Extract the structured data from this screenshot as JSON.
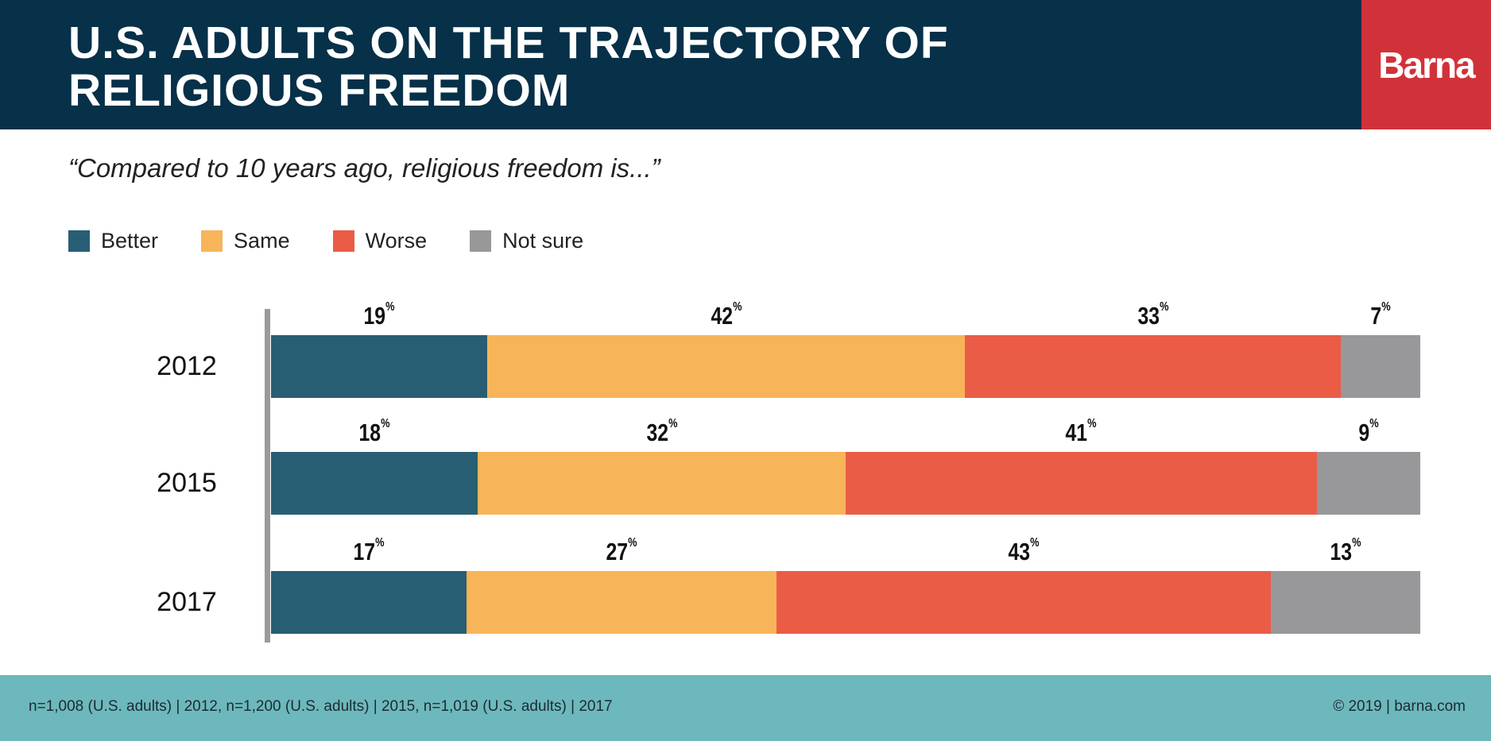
{
  "header": {
    "title": "U.S. ADULTS ON THE TRAJECTORY OF RELIGIOUS FREEDOM",
    "brand": "Barna"
  },
  "subtitle": "“Compared to 10 years ago, religious freedom is...”",
  "footer": {
    "source": "n=1,008 (U.S. adults) | 2012, n=1,200 (U.S. adults) | 2015, n=1,019 (U.S. adults) | 2017",
    "copyright": "© 2019 | barna.com"
  },
  "chart_data": {
    "type": "bar",
    "orientation": "horizontal-stacked",
    "title": "U.S. ADULTS ON THE TRAJECTORY OF RELIGIOUS FREEDOM",
    "categories": [
      "2012",
      "2015",
      "2017"
    ],
    "series": [
      {
        "name": "Better",
        "color": "#285e74",
        "values": [
          19,
          18,
          17
        ]
      },
      {
        "name": "Same",
        "color": "#f8b459",
        "values": [
          42,
          32,
          27
        ]
      },
      {
        "name": "Worse",
        "color": "#ea5c46",
        "values": [
          33,
          41,
          43
        ]
      },
      {
        "name": "Not sure",
        "color": "#98989a",
        "values": [
          7,
          9,
          13
        ]
      }
    ],
    "unit": "%",
    "legend": "top-left"
  }
}
